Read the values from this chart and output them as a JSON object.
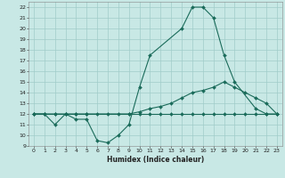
{
  "line1": {
    "x": [
      0,
      1,
      2,
      3,
      4,
      5,
      6,
      7,
      8,
      9,
      10,
      11,
      14,
      15,
      16,
      17,
      18,
      19,
      21,
      22,
      23
    ],
    "y": [
      12,
      12,
      11,
      12,
      11.5,
      11.5,
      9.5,
      9.3,
      10,
      11,
      14.5,
      17.5,
      20,
      22,
      22,
      21,
      17.5,
      15,
      12.5,
      12,
      12
    ]
  },
  "line2": {
    "x": [
      0,
      1,
      2,
      3,
      4,
      5,
      9,
      10,
      11,
      12,
      13,
      14,
      15,
      16,
      17,
      18,
      19,
      20,
      21,
      22,
      23
    ],
    "y": [
      12,
      12,
      12,
      12,
      12,
      12,
      12,
      12.2,
      12.5,
      12.7,
      13,
      13.5,
      14,
      14.2,
      14.5,
      15,
      14.5,
      14,
      13.5,
      13,
      12
    ]
  },
  "line3": {
    "x": [
      0,
      1,
      2,
      3,
      4,
      5,
      6,
      7,
      8,
      9,
      10,
      11,
      12,
      13,
      14,
      15,
      16,
      17,
      18,
      19,
      20,
      21,
      22,
      23
    ],
    "y": [
      12,
      12,
      12,
      12,
      12,
      12,
      12,
      12,
      12,
      12,
      12,
      12,
      12,
      12,
      12,
      12,
      12,
      12,
      12,
      12,
      12,
      12,
      12,
      12
    ]
  },
  "background_color": "#c8e8e5",
  "grid_color": "#a0ccc9",
  "line_color": "#1a6b5a",
  "marker": "D",
  "marker_size": 2,
  "xlabel": "Humidex (Indice chaleur)",
  "xlim": [
    -0.5,
    23.5
  ],
  "ylim": [
    9,
    22.5
  ],
  "xticks": [
    0,
    1,
    2,
    3,
    4,
    5,
    6,
    7,
    8,
    9,
    10,
    11,
    12,
    13,
    14,
    15,
    16,
    17,
    18,
    19,
    20,
    21,
    22,
    23
  ],
  "yticks": [
    9,
    10,
    11,
    12,
    13,
    14,
    15,
    16,
    17,
    18,
    19,
    20,
    21,
    22
  ]
}
